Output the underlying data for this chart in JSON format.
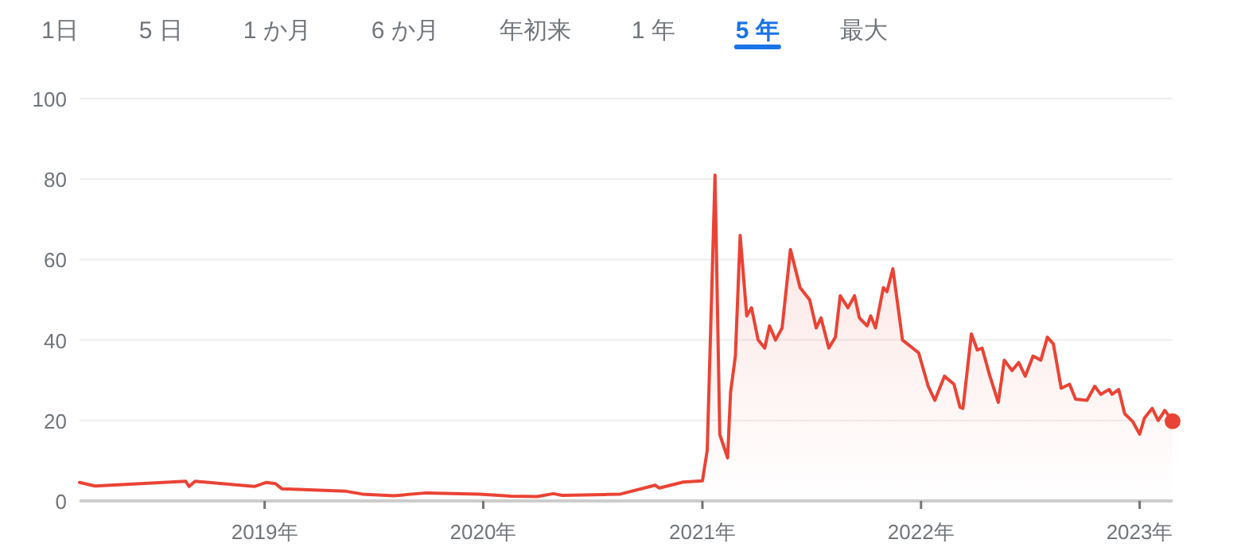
{
  "chart_data": {
    "type": "area",
    "color": "#ea4335",
    "x": [
      "2018-02-26",
      "2018-03-24",
      "2018-08-22",
      "2018-08-28",
      "2018-09-07",
      "2018-12-15",
      "2019-01-04",
      "2019-01-19",
      "2019-01-30",
      "2019-05-17",
      "2019-06-13",
      "2019-08-05",
      "2019-09-28",
      "2019-12-26",
      "2020-02-16",
      "2020-03-31",
      "2020-04-27",
      "2020-05-12",
      "2020-07-22",
      "2020-08-17",
      "2020-10-14",
      "2020-10-21",
      "2020-11-30",
      "2021-01-01",
      "2021-01-09",
      "2021-01-22",
      "2021-01-30",
      "2021-02-12",
      "2021-02-17",
      "2021-02-25",
      "2021-03-05",
      "2021-03-16",
      "2021-03-24",
      "2021-04-04",
      "2021-04-15",
      "2021-04-23",
      "2021-05-03",
      "2021-05-14",
      "2021-05-28",
      "2021-06-13",
      "2021-06-29",
      "2021-07-10",
      "2021-07-18",
      "2021-07-31",
      "2021-08-11",
      "2021-08-19",
      "2021-09-01",
      "2021-09-12",
      "2021-09-20",
      "2021-10-03",
      "2021-10-09",
      "2021-10-17",
      "2021-10-30",
      "2021-11-05",
      "2021-11-15",
      "2021-12-01",
      "2021-12-28",
      "2022-01-13",
      "2022-01-24",
      "2022-02-09",
      "2022-02-25",
      "2022-03-07",
      "2022-03-12",
      "2022-03-26",
      "2022-04-05",
      "2022-04-13",
      "2022-04-26",
      "2022-05-10",
      "2022-05-20",
      "2022-06-02",
      "2022-06-13",
      "2022-06-24",
      "2022-07-07",
      "2022-07-20",
      "2022-07-31",
      "2022-08-10",
      "2022-08-23",
      "2022-09-06",
      "2022-09-16",
      "2022-10-05",
      "2022-10-18",
      "2022-10-28",
      "2022-11-11",
      "2022-11-16",
      "2022-11-27",
      "2022-12-07",
      "2022-12-20",
      "2023-01-01",
      "2023-01-09",
      "2023-01-22",
      "2023-02-01",
      "2023-02-12",
      "2023-02-25"
    ],
    "values": [
      4.6,
      3.7,
      4.9,
      3.6,
      4.9,
      3.6,
      4.6,
      4.3,
      3.0,
      2.4,
      1.7,
      1.3,
      2.0,
      1.7,
      1.2,
      1.1,
      1.8,
      1.4,
      1.6,
      1.7,
      3.9,
      3.2,
      4.7,
      5,
      12.6,
      81,
      16.5,
      10.7,
      27,
      36,
      66,
      46,
      48,
      40,
      38,
      43.5,
      40,
      43,
      62.5,
      53,
      50,
      43,
      45.5,
      38,
      40.7,
      51,
      48,
      51,
      45.5,
      43.5,
      46,
      43,
      53,
      52,
      57.7,
      40,
      36.8,
      28.5,
      25,
      31,
      29,
      23.3,
      23,
      41.5,
      37.5,
      38,
      31,
      24.5,
      35,
      32.4,
      34.4,
      31,
      36,
      35,
      40.7,
      39,
      28,
      29,
      25.3,
      25,
      28.5,
      26.5,
      27.7,
      26.5,
      27.7,
      21.7,
      19.8,
      16.6,
      20.6,
      23,
      20,
      22.5,
      19.8
    ],
    "xlim": [
      "2018-02-26",
      "2023-02-25"
    ],
    "xticks": [
      {
        "value": "2019-01-01",
        "label": "2019年"
      },
      {
        "value": "2020-01-01",
        "label": "2020年"
      },
      {
        "value": "2021-01-01",
        "label": "2021年"
      },
      {
        "value": "2022-01-01",
        "label": "2022年"
      },
      {
        "value": "2023-01-01",
        "label": "2023年"
      }
    ],
    "ylim": [
      0,
      100
    ],
    "yticks": [
      0,
      20,
      40,
      60,
      80,
      100
    ],
    "grid": "y",
    "annotations": [
      "1日",
      "5 日",
      "1 か月",
      "6 か月",
      "年初来",
      "1 年",
      "5 年",
      "最大"
    ]
  }
}
